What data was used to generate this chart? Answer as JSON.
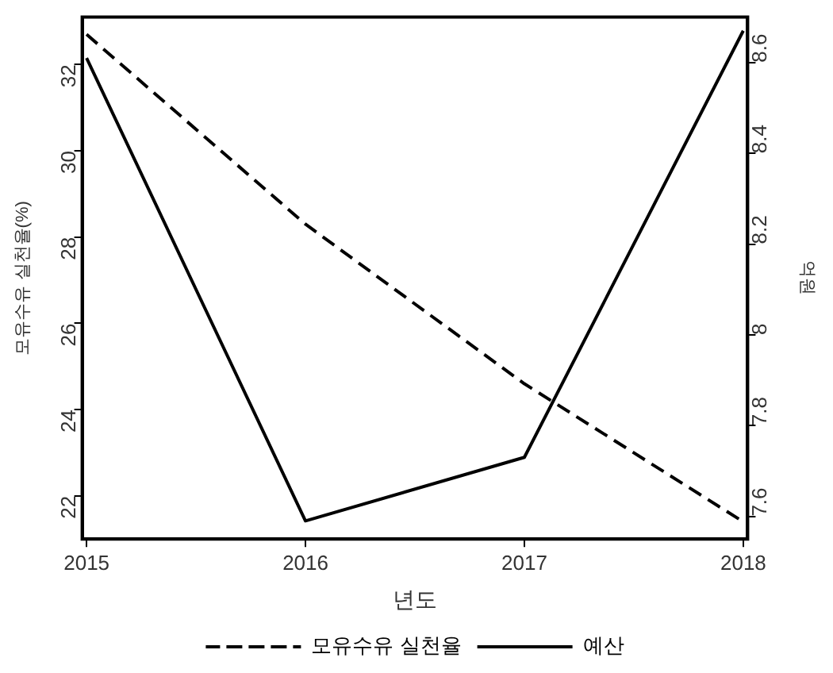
{
  "chart_data": {
    "type": "line",
    "xlabel": "년도",
    "ylabel": "모유수유 실천율(%)",
    "y2label": "억원",
    "x": [
      2015,
      2016,
      2017,
      2018
    ],
    "xlim": [
      2014.98,
      2018.02
    ],
    "xticks": [
      2015,
      2016,
      2017,
      2018
    ],
    "ylim": [
      21.0,
      33.1
    ],
    "yticks": [
      22,
      24,
      26,
      28,
      30,
      32
    ],
    "y2lim": [
      7.55,
      8.7
    ],
    "y2ticks": [
      {
        "value": 7.6,
        "label": "7.6"
      },
      {
        "value": 7.8,
        "label": "7.8"
      },
      {
        "value": 8,
        "label": "8"
      },
      {
        "value": 8.2,
        "label": "8.2"
      },
      {
        "value": 8.4,
        "label": "8.4"
      },
      {
        "value": 8.6,
        "label": "8.6"
      }
    ],
    "series": [
      {
        "name": "모유수유 실천율",
        "color": "#000000",
        "line_style": "dashed",
        "values": [
          32.7,
          28.3,
          24.6,
          21.4
        ]
      },
      {
        "name": "예산",
        "color": "#000000",
        "line_style": "solid",
        "axis": "y2",
        "values": [
          8.61,
          7.59,
          7.73,
          8.67
        ]
      }
    ],
    "grid": false,
    "legend": "bottom",
    "marker": "none"
  }
}
